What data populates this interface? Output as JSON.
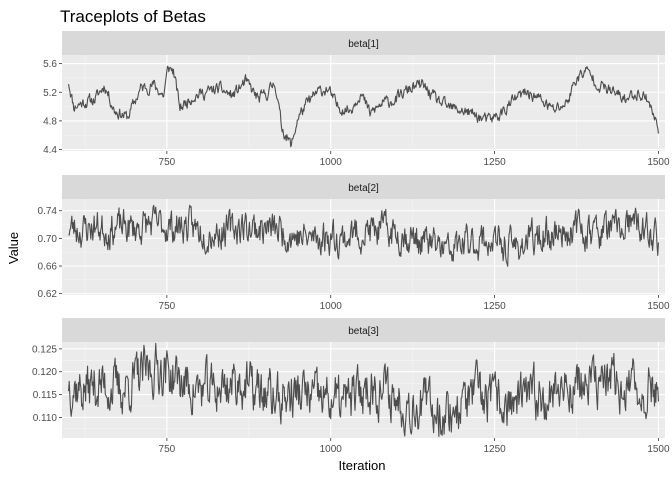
{
  "chart_data": {
    "type": "line",
    "title": "Traceplots of Betas",
    "xlabel": "Iteration",
    "ylabel": "Value",
    "x_ticks": [
      750,
      1000,
      1250,
      1500
    ],
    "xlim": [
      590,
      1510
    ],
    "x_start": 600,
    "x_end": 1500,
    "line_color": "#4d4d4d",
    "panel_bg": "#ebebeb",
    "strip_bg": "#d9d9d9",
    "grid": true,
    "panels": [
      {
        "name": "beta[1]",
        "y_ticks": [
          4.4,
          4.8,
          5.2,
          5.6
        ],
        "ylim": [
          4.38,
          5.72
        ],
        "keypoints": [
          [
            600,
            5.35
          ],
          [
            608,
            5.0
          ],
          [
            620,
            5.05
          ],
          [
            640,
            5.1
          ],
          [
            655,
            5.3
          ],
          [
            670,
            4.95
          ],
          [
            690,
            4.85
          ],
          [
            710,
            5.25
          ],
          [
            730,
            5.3
          ],
          [
            745,
            5.15
          ],
          [
            752,
            5.55
          ],
          [
            760,
            5.5
          ],
          [
            770,
            4.98
          ],
          [
            790,
            5.15
          ],
          [
            810,
            5.2
          ],
          [
            830,
            5.25
          ],
          [
            850,
            5.15
          ],
          [
            870,
            5.35
          ],
          [
            890,
            5.1
          ],
          [
            905,
            5.2
          ],
          [
            915,
            5.35
          ],
          [
            925,
            4.72
          ],
          [
            940,
            4.45
          ],
          [
            950,
            4.85
          ],
          [
            965,
            5.05
          ],
          [
            980,
            5.2
          ],
          [
            995,
            5.25
          ],
          [
            1010,
            5.0
          ],
          [
            1030,
            4.95
          ],
          [
            1045,
            5.2
          ],
          [
            1060,
            4.9
          ],
          [
            1080,
            5.05
          ],
          [
            1100,
            5.1
          ],
          [
            1120,
            5.25
          ],
          [
            1140,
            5.3
          ],
          [
            1160,
            5.1
          ],
          [
            1180,
            4.98
          ],
          [
            1200,
            4.95
          ],
          [
            1220,
            4.88
          ],
          [
            1240,
            4.8
          ],
          [
            1260,
            4.9
          ],
          [
            1280,
            5.1
          ],
          [
            1300,
            5.2
          ],
          [
            1320,
            5.1
          ],
          [
            1340,
            4.95
          ],
          [
            1360,
            5.05
          ],
          [
            1375,
            5.4
          ],
          [
            1390,
            5.5
          ],
          [
            1410,
            5.3
          ],
          [
            1430,
            5.2
          ],
          [
            1450,
            5.1
          ],
          [
            1470,
            5.2
          ],
          [
            1485,
            5.1
          ],
          [
            1493,
            4.85
          ],
          [
            1500,
            4.7
          ]
        ],
        "seed": 11,
        "noise": 0.07
      },
      {
        "name": "beta[2]",
        "y_ticks": [
          0.62,
          0.66,
          0.7,
          0.74
        ],
        "ylim": [
          0.618,
          0.757
        ],
        "keypoints": [
          [
            600,
            0.716
          ],
          [
            620,
            0.712
          ],
          [
            640,
            0.718
          ],
          [
            660,
            0.712
          ],
          [
            680,
            0.717
          ],
          [
            700,
            0.714
          ],
          [
            720,
            0.72
          ],
          [
            740,
            0.72
          ],
          [
            760,
            0.716
          ],
          [
            780,
            0.718
          ],
          [
            800,
            0.712
          ],
          [
            820,
            0.708
          ],
          [
            840,
            0.712
          ],
          [
            860,
            0.717
          ],
          [
            880,
            0.716
          ],
          [
            900,
            0.714
          ],
          [
            920,
            0.712
          ],
          [
            940,
            0.705
          ],
          [
            960,
            0.7
          ],
          [
            980,
            0.7
          ],
          [
            1000,
            0.704
          ],
          [
            1020,
            0.7
          ],
          [
            1040,
            0.708
          ],
          [
            1060,
            0.71
          ],
          [
            1080,
            0.712
          ],
          [
            1100,
            0.708
          ],
          [
            1120,
            0.702
          ],
          [
            1140,
            0.695
          ],
          [
            1160,
            0.69
          ],
          [
            1180,
            0.68
          ],
          [
            1200,
            0.69
          ],
          [
            1220,
            0.695
          ],
          [
            1240,
            0.698
          ],
          [
            1260,
            0.688
          ],
          [
            1280,
            0.688
          ],
          [
            1300,
            0.695
          ],
          [
            1320,
            0.702
          ],
          [
            1340,
            0.708
          ],
          [
            1360,
            0.712
          ],
          [
            1380,
            0.714
          ],
          [
            1400,
            0.71
          ],
          [
            1420,
            0.712
          ],
          [
            1440,
            0.714
          ],
          [
            1460,
            0.72
          ],
          [
            1480,
            0.71
          ],
          [
            1500,
            0.7
          ]
        ],
        "seed": 23,
        "noise": 0.02
      },
      {
        "name": "beta[3]",
        "y_ticks": [
          0.11,
          0.115,
          0.12,
          0.125
        ],
        "ylim": [
          0.1055,
          0.1265
        ],
        "keypoints": [
          [
            600,
            0.118
          ],
          [
            620,
            0.116
          ],
          [
            640,
            0.117
          ],
          [
            660,
            0.117
          ],
          [
            680,
            0.116
          ],
          [
            700,
            0.118
          ],
          [
            720,
            0.12
          ],
          [
            740,
            0.121
          ],
          [
            760,
            0.119
          ],
          [
            780,
            0.117
          ],
          [
            800,
            0.116
          ],
          [
            820,
            0.116
          ],
          [
            840,
            0.117
          ],
          [
            860,
            0.118
          ],
          [
            880,
            0.116
          ],
          [
            900,
            0.115
          ],
          [
            920,
            0.114
          ],
          [
            940,
            0.115
          ],
          [
            960,
            0.115
          ],
          [
            980,
            0.114
          ],
          [
            1000,
            0.114
          ],
          [
            1020,
            0.113
          ],
          [
            1040,
            0.115
          ],
          [
            1060,
            0.117
          ],
          [
            1080,
            0.116
          ],
          [
            1100,
            0.114
          ],
          [
            1120,
            0.113
          ],
          [
            1140,
            0.113
          ],
          [
            1160,
            0.112
          ],
          [
            1180,
            0.111
          ],
          [
            1200,
            0.113
          ],
          [
            1220,
            0.115
          ],
          [
            1240,
            0.114
          ],
          [
            1260,
            0.113
          ],
          [
            1280,
            0.113
          ],
          [
            1300,
            0.114
          ],
          [
            1320,
            0.115
          ],
          [
            1340,
            0.116
          ],
          [
            1360,
            0.117
          ],
          [
            1380,
            0.117
          ],
          [
            1400,
            0.117
          ],
          [
            1420,
            0.118
          ],
          [
            1440,
            0.117
          ],
          [
            1460,
            0.116
          ],
          [
            1480,
            0.116
          ],
          [
            1500,
            0.117
          ]
        ],
        "seed": 37,
        "noise": 0.0045
      }
    ]
  }
}
